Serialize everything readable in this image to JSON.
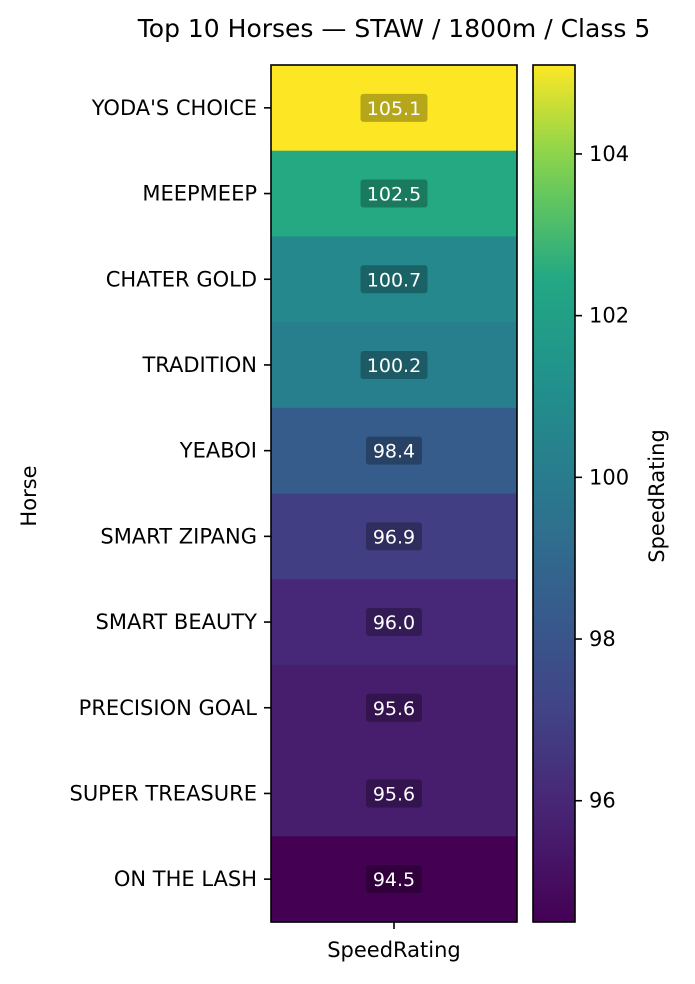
{
  "chart_data": {
    "type": "heatmap",
    "title": "Top 10 Horses — STAW / 1800m / Class 5",
    "xlabel": "SpeedRating",
    "ylabel": "Horse",
    "columns": [
      "SpeedRating"
    ],
    "rows": [
      {
        "horse": "YODA'S CHOICE",
        "value": 105.1,
        "label": "105.1"
      },
      {
        "horse": "MEEPMEEP",
        "value": 102.5,
        "label": "102.5"
      },
      {
        "horse": "CHATER GOLD",
        "value": 100.7,
        "label": "100.7"
      },
      {
        "horse": "TRADITION",
        "value": 100.2,
        "label": "100.2"
      },
      {
        "horse": "YEABOI",
        "value": 98.4,
        "label": "98.4"
      },
      {
        "horse": "SMART ZIPANG",
        "value": 96.9,
        "label": "96.9"
      },
      {
        "horse": "SMART BEAUTY",
        "value": 96.0,
        "label": "96.0"
      },
      {
        "horse": "PRECISION GOAL",
        "value": 95.6,
        "label": "95.6"
      },
      {
        "horse": "SUPER TREASURE",
        "value": 95.6,
        "label": "95.6"
      },
      {
        "horse": "ON THE LASH",
        "value": 94.5,
        "label": "94.5"
      }
    ],
    "colorbar": {
      "label": "SpeedRating",
      "colormap": "viridis",
      "range": [
        94.5,
        105.1
      ],
      "ticks": [
        96,
        98,
        100,
        102,
        104
      ]
    }
  }
}
